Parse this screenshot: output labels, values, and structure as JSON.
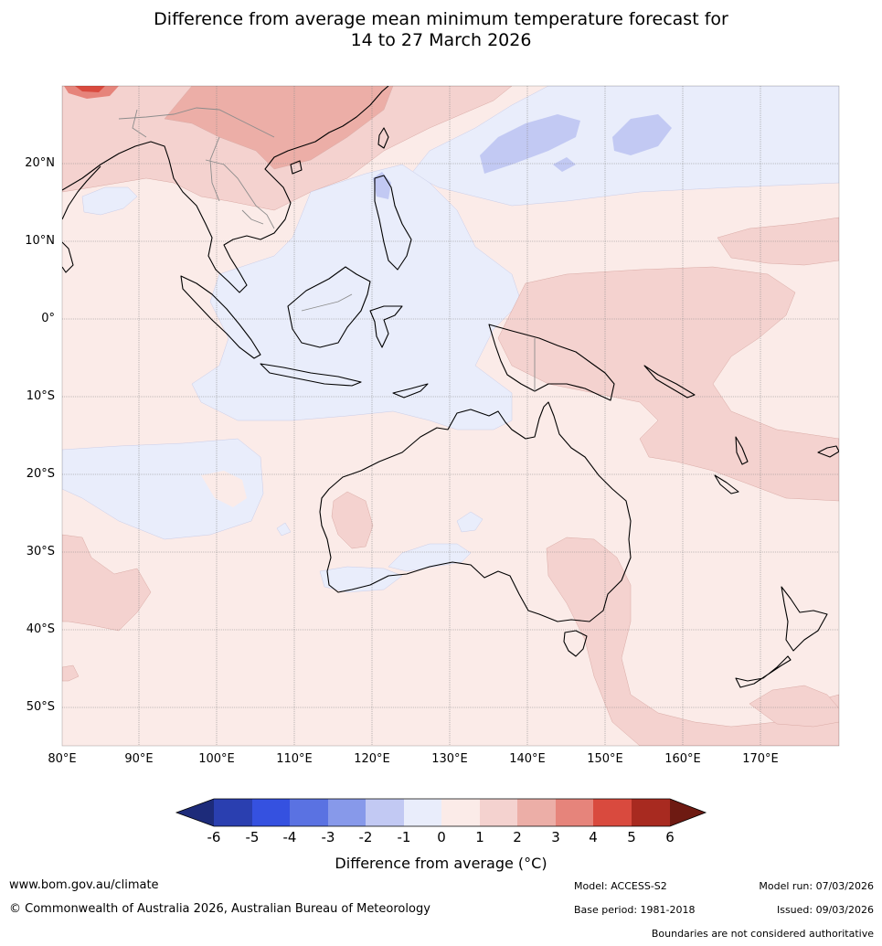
{
  "title": {
    "line1": "Difference from average mean minimum temperature forecast for",
    "line2": "14 to 27 March 2026"
  },
  "map": {
    "lon_range": [
      80,
      180
    ],
    "lat_range": [
      -55,
      30
    ],
    "lat_labels": [
      "20°N",
      "10°N",
      "0°",
      "10°S",
      "20°S",
      "30°S",
      "40°S",
      "50°S"
    ],
    "lon_labels": [
      "80°E",
      "90°E",
      "100°E",
      "110°E",
      "120°E",
      "130°E",
      "140°E",
      "150°E",
      "160°E",
      "170°E"
    ],
    "background_anomaly_color": "#fbebe8"
  },
  "colorbar": {
    "ticks": [
      "-6",
      "-5",
      "-4",
      "-3",
      "-2",
      "-1",
      "0",
      "1",
      "2",
      "3",
      "4",
      "5",
      "6"
    ],
    "colors": [
      "#1d2b7a",
      "#2a3fb0",
      "#3551e0",
      "#5a72e2",
      "#8799ea",
      "#c2c9f3",
      "#e9edfb",
      "#fbebe8",
      "#f4d2cf",
      "#ecaea7",
      "#e6847b",
      "#d94a3e",
      "#a82a20",
      "#6e1a12"
    ],
    "title": "Difference from average (°C)"
  },
  "footer": {
    "website": "www.bom.gov.au/climate",
    "copyright": "© Commonwealth of Australia 2026, Australian Bureau of Meteorology",
    "model": "Model: ACCESS-S2",
    "base_period": "Base period: 1981-2018",
    "model_run": "Model run: 07/03/2026",
    "issued": "Issued: 09/03/2026",
    "disclaimer": "Boundaries are not considered authoritative"
  }
}
